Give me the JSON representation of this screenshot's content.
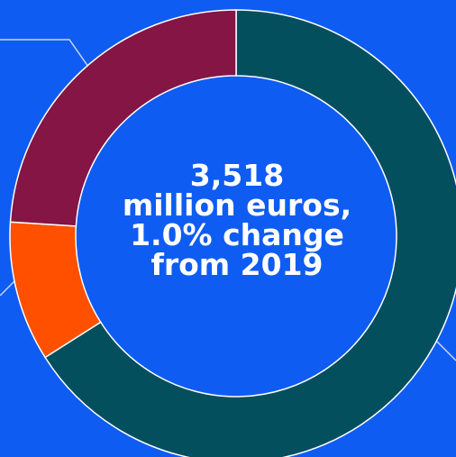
{
  "colors": {
    "background": "#0f5cf2",
    "leader_line": "#c9d6f5",
    "segment_border": "#ffffff",
    "center_text": "#ffffff"
  },
  "chart_data": {
    "type": "pie",
    "style": "donut",
    "slices": [
      {
        "value": 66.0,
        "color": "#034f5e"
      },
      {
        "value": 10.0,
        "color": "#ff5000"
      },
      {
        "value": 24.0,
        "color": "#841545"
      }
    ],
    "center_text": {
      "line1": "3,518",
      "line2": "million euros,",
      "line3": "1.0% change",
      "line4": "from 2019"
    }
  }
}
